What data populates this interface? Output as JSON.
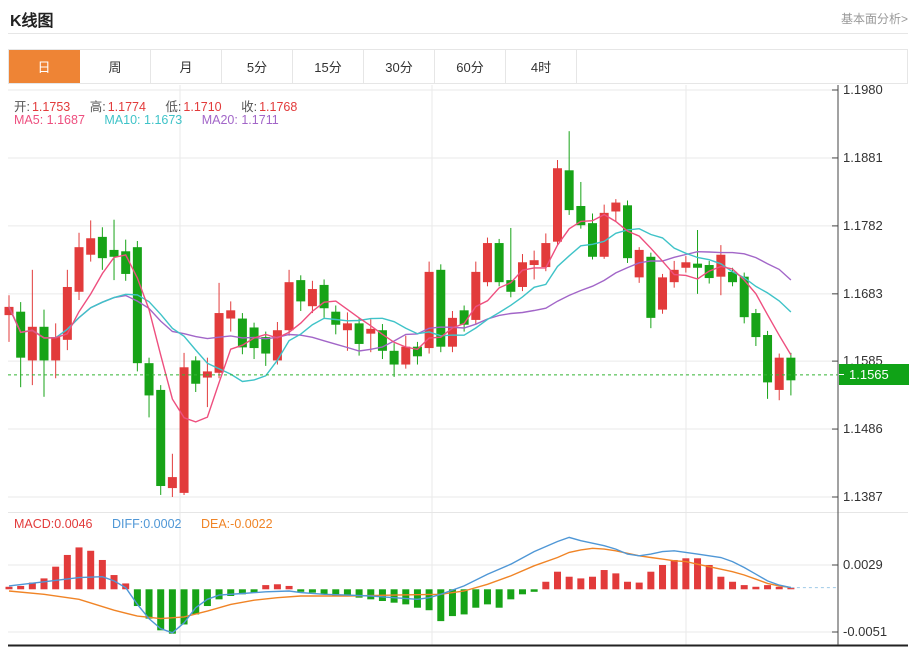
{
  "header": {
    "title": "K线图",
    "link": "基本面分析>"
  },
  "tabs": [
    {
      "label": "日",
      "name": "day",
      "active": true
    },
    {
      "label": "周",
      "name": "week",
      "active": false
    },
    {
      "label": "月",
      "name": "month",
      "active": false
    },
    {
      "label": "5分",
      "name": "5min",
      "active": false
    },
    {
      "label": "15分",
      "name": "15min",
      "active": false
    },
    {
      "label": "30分",
      "name": "30min",
      "active": false
    },
    {
      "label": "60分",
      "name": "60min",
      "active": false
    },
    {
      "label": "4时",
      "name": "4hour",
      "active": false
    }
  ],
  "indicator_bar": {
    "open_label": "开:",
    "open": "1.1753",
    "high_label": "高:",
    "high": "1.1774",
    "low_label": "低:",
    "low": "1.1710",
    "close_label": "收:",
    "close": "1.1768",
    "ma5_label": "MA5:",
    "ma5": "1.1687",
    "ma10_label": "MA10:",
    "ma10": "1.1673",
    "ma20_label": "MA20:",
    "ma20": "1.1711"
  },
  "macd_bar": {
    "macd_label": "MACD:",
    "macd": "0.0046",
    "diff_label": "DIFF:",
    "diff": "0.0002",
    "dea_label": "DEA:",
    "dea": "-0.0022"
  },
  "price_badge": "1.1565",
  "colors": {
    "accent_orange": "#ee8435",
    "up_red": "#e23b3b",
    "down_green": "#17a317",
    "ma5_pink": "#ee4f7f",
    "ma10_cyan": "#3fc3c8",
    "ma20_purple": "#a266c8",
    "diff_blue": "#4f97d6",
    "dea_orange": "#f08426",
    "badge_green": "#10a317",
    "price_line_green": "#33b433",
    "diff_dash_blue": "#9ecae8",
    "grid": "#eaeaea",
    "axis": "#444444",
    "text_dark": "#333333",
    "text_muted": "#999999",
    "border": "#e6e6e6"
  },
  "chart_data": {
    "type": "candlestick+macd",
    "main": {
      "y_ticks": [
        1.198,
        1.1881,
        1.1782,
        1.1683,
        1.1585,
        1.1486,
        1.1387
      ],
      "current_price": 1.1565,
      "ma_windows": [
        5,
        10,
        20
      ],
      "candles": [
        [
          1.1652,
          1.1681,
          1.1613,
          1.1664
        ],
        [
          1.1657,
          1.1671,
          1.1547,
          1.159
        ],
        [
          1.1586,
          1.1718,
          1.155,
          1.1635
        ],
        [
          1.1635,
          1.166,
          1.1533,
          1.1586
        ],
        [
          1.1586,
          1.164,
          1.156,
          1.162
        ],
        [
          1.1616,
          1.1718,
          1.1601,
          1.1693
        ],
        [
          1.1686,
          1.1772,
          1.1674,
          1.1751
        ],
        [
          1.174,
          1.179,
          1.173,
          1.1764
        ],
        [
          1.1766,
          1.178,
          1.1718,
          1.1735
        ],
        [
          1.1747,
          1.1791,
          1.1703,
          1.1737
        ],
        [
          1.1745,
          1.1762,
          1.1702,
          1.1712
        ],
        [
          1.1751,
          1.176,
          1.157,
          1.1582
        ],
        [
          1.1582,
          1.159,
          1.1503,
          1.1535
        ],
        [
          1.1543,
          1.155,
          1.139,
          1.1403
        ],
        [
          1.14,
          1.145,
          1.1387,
          1.1416
        ],
        [
          1.1393,
          1.1597,
          1.139,
          1.1576
        ],
        [
          1.1586,
          1.1592,
          1.154,
          1.1552
        ],
        [
          1.1561,
          1.159,
          1.1518,
          1.157
        ],
        [
          1.1568,
          1.1699,
          1.156,
          1.1655
        ],
        [
          1.1647,
          1.1672,
          1.1628,
          1.1659
        ],
        [
          1.1647,
          1.1655,
          1.1595,
          1.1605
        ],
        [
          1.1634,
          1.1641,
          1.1588,
          1.1604
        ],
        [
          1.162,
          1.1628,
          1.1578,
          1.1596
        ],
        [
          1.1586,
          1.1642,
          1.158,
          1.163
        ],
        [
          1.163,
          1.1718,
          1.1622,
          1.17
        ],
        [
          1.1703,
          1.171,
          1.1658,
          1.1672
        ],
        [
          1.1665,
          1.1702,
          1.1655,
          1.169
        ],
        [
          1.1696,
          1.1704,
          1.1648,
          1.1662
        ],
        [
          1.1657,
          1.1666,
          1.1624,
          1.1638
        ],
        [
          1.163,
          1.1656,
          1.16,
          1.164
        ],
        [
          1.164,
          1.1648,
          1.1593,
          1.161
        ],
        [
          1.1625,
          1.1646,
          1.1598,
          1.1632
        ],
        [
          1.163,
          1.1639,
          1.1588,
          1.16
        ],
        [
          1.16,
          1.1611,
          1.1562,
          1.158
        ],
        [
          1.158,
          1.1622,
          1.1574,
          1.1606
        ],
        [
          1.1606,
          1.1613,
          1.158,
          1.1592
        ],
        [
          1.1604,
          1.173,
          1.1596,
          1.1715
        ],
        [
          1.1718,
          1.1726,
          1.1598,
          1.1606
        ],
        [
          1.1606,
          1.1658,
          1.1598,
          1.1648
        ],
        [
          1.1659,
          1.1666,
          1.1628,
          1.1638
        ],
        [
          1.1645,
          1.173,
          1.1638,
          1.1715
        ],
        [
          1.17,
          1.1765,
          1.1694,
          1.1757
        ],
        [
          1.1757,
          1.1763,
          1.1694,
          1.17
        ],
        [
          1.1703,
          1.1779,
          1.1678,
          1.1686
        ],
        [
          1.1693,
          1.1741,
          1.1687,
          1.1729
        ],
        [
          1.1725,
          1.1746,
          1.1704,
          1.1732
        ],
        [
          1.1722,
          1.1771,
          1.1716,
          1.1757
        ],
        [
          1.1759,
          1.1878,
          1.1753,
          1.1866
        ],
        [
          1.1863,
          1.192,
          1.1798,
          1.1805
        ],
        [
          1.1811,
          1.1846,
          1.1778,
          1.1783
        ],
        [
          1.1786,
          1.18,
          1.1733,
          1.1737
        ],
        [
          1.1737,
          1.1813,
          1.1734,
          1.1801
        ],
        [
          1.1803,
          1.1821,
          1.1789,
          1.1816
        ],
        [
          1.1812,
          1.1819,
          1.1728,
          1.1735
        ],
        [
          1.1707,
          1.1751,
          1.1699,
          1.1747
        ],
        [
          1.1737,
          1.1743,
          1.1633,
          1.1648
        ],
        [
          1.166,
          1.1712,
          1.1654,
          1.1707
        ],
        [
          1.17,
          1.1731,
          1.1692,
          1.1718
        ],
        [
          1.1721,
          1.1738,
          1.1714,
          1.1729
        ],
        [
          1.1727,
          1.1776,
          1.1683,
          1.1721
        ],
        [
          1.1725,
          1.1731,
          1.1698,
          1.1706
        ],
        [
          1.1708,
          1.1754,
          1.1681,
          1.174
        ],
        [
          1.1715,
          1.1721,
          1.1694,
          1.17
        ],
        [
          1.1708,
          1.1714,
          1.164,
          1.1649
        ],
        [
          1.1655,
          1.1661,
          1.1607,
          1.162
        ],
        [
          1.1623,
          1.1629,
          1.153,
          1.1554
        ],
        [
          1.1543,
          1.1596,
          1.1528,
          1.159
        ],
        [
          1.159,
          1.1597,
          1.1535,
          1.1557
        ]
      ]
    },
    "macd": {
      "y_ticks": [
        0.0029,
        -0.0051
      ],
      "histogram": [
        0.0003,
        0.0004,
        0.0008,
        0.0013,
        0.0027,
        0.0041,
        0.005,
        0.0046,
        0.0035,
        0.0017,
        0.0007,
        -0.002,
        -0.0035,
        -0.0049,
        -0.0053,
        -0.0042,
        -0.003,
        -0.002,
        -0.0012,
        -0.0008,
        -0.0006,
        -0.0004,
        0.0005,
        0.0006,
        0.0004,
        -0.0003,
        -0.0004,
        -0.0006,
        -0.0008,
        -0.0008,
        -0.001,
        -0.0012,
        -0.0014,
        -0.0016,
        -0.0018,
        -0.0022,
        -0.0025,
        -0.0038,
        -0.0032,
        -0.003,
        -0.0022,
        -0.0018,
        -0.0022,
        -0.0012,
        -0.0006,
        -0.0003,
        0.0009,
        0.0021,
        0.0015,
        0.0013,
        0.0015,
        0.0023,
        0.0019,
        0.0009,
        0.0008,
        0.0021,
        0.0029,
        0.0035,
        0.0037,
        0.0037,
        0.0029,
        0.0015,
        0.0009,
        0.0005,
        0.0003,
        0.0005,
        0.0003,
        0.0002
      ],
      "diff_line": [
        [
          0,
          0.0004
        ],
        [
          3,
          0.0009
        ],
        [
          6,
          0.0014
        ],
        [
          8,
          0.0015
        ],
        [
          9,
          0.001
        ],
        [
          10,
          0.0002
        ],
        [
          11,
          -0.0018
        ],
        [
          12,
          -0.0035
        ],
        [
          13,
          -0.0047
        ],
        [
          14,
          -0.0052
        ],
        [
          15,
          -0.004
        ],
        [
          16,
          -0.0022
        ],
        [
          17,
          -0.0012
        ],
        [
          18,
          -0.0007
        ],
        [
          20,
          -0.0005
        ],
        [
          22,
          -0.0003
        ],
        [
          24,
          -0.0002
        ],
        [
          25,
          -0.0004
        ],
        [
          27,
          -0.0006
        ],
        [
          29,
          -0.0007
        ],
        [
          31,
          -0.0008
        ],
        [
          33,
          -0.001
        ],
        [
          35,
          -0.0012
        ],
        [
          36,
          -0.001
        ],
        [
          37,
          -0.0006
        ],
        [
          39,
          0.0004
        ],
        [
          41,
          0.0018
        ],
        [
          43,
          0.003
        ],
        [
          45,
          0.0045
        ],
        [
          47,
          0.0057
        ],
        [
          48,
          0.0062
        ],
        [
          49,
          0.0058
        ],
        [
          50,
          0.0055
        ],
        [
          51,
          0.0052
        ],
        [
          52,
          0.0048
        ],
        [
          53,
          0.0042
        ],
        [
          54,
          0.004
        ],
        [
          55,
          0.0042
        ],
        [
          56,
          0.0045
        ],
        [
          57,
          0.0046
        ],
        [
          58,
          0.0044
        ],
        [
          59,
          0.0042
        ],
        [
          60,
          0.004
        ],
        [
          61,
          0.0038
        ],
        [
          62,
          0.0033
        ],
        [
          63,
          0.0026
        ],
        [
          64,
          0.0018
        ],
        [
          65,
          0.001
        ],
        [
          66,
          0.0005
        ],
        [
          67,
          0.0002
        ]
      ],
      "dea_line": [
        [
          0,
          -0.0002
        ],
        [
          3,
          -0.0006
        ],
        [
          6,
          -0.0012
        ],
        [
          9,
          -0.0025
        ],
        [
          11,
          -0.0032
        ],
        [
          13,
          -0.0035
        ],
        [
          15,
          -0.0033
        ],
        [
          17,
          -0.0026
        ],
        [
          19,
          -0.0018
        ],
        [
          21,
          -0.0013
        ],
        [
          23,
          -0.001
        ],
        [
          25,
          -0.0008
        ],
        [
          29,
          -0.0008
        ],
        [
          33,
          -0.0007
        ],
        [
          37,
          -0.0006
        ],
        [
          39,
          -0.0002
        ],
        [
          41,
          0.0006
        ],
        [
          43,
          0.0016
        ],
        [
          45,
          0.0028
        ],
        [
          47,
          0.0038
        ],
        [
          48,
          0.0044
        ],
        [
          49,
          0.0047
        ],
        [
          50,
          0.0049
        ],
        [
          51,
          0.0048
        ],
        [
          52,
          0.0046
        ],
        [
          53,
          0.0043
        ],
        [
          54,
          0.004
        ],
        [
          55,
          0.0038
        ],
        [
          56,
          0.0036
        ],
        [
          57,
          0.0034
        ],
        [
          58,
          0.0033
        ],
        [
          59,
          0.003
        ],
        [
          60,
          0.0027
        ],
        [
          61,
          0.0024
        ],
        [
          62,
          0.0021
        ],
        [
          63,
          0.0017
        ],
        [
          64,
          0.0012
        ],
        [
          65,
          0.0007
        ],
        [
          66,
          0.0004
        ],
        [
          67,
          0.0002
        ]
      ]
    }
  }
}
